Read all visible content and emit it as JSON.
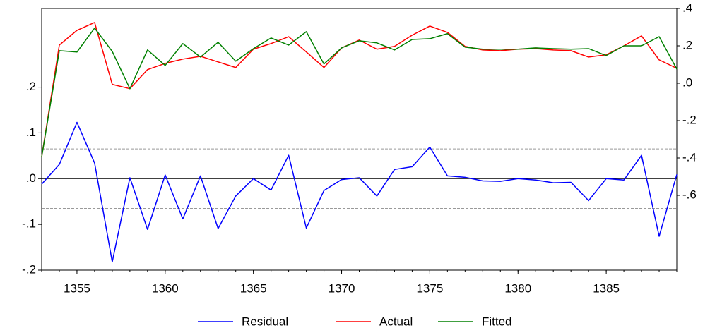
{
  "chart_data": {
    "type": "line",
    "x": [
      1353,
      1354,
      1355,
      1356,
      1357,
      1358,
      1359,
      1360,
      1361,
      1362,
      1363,
      1364,
      1365,
      1366,
      1367,
      1368,
      1369,
      1370,
      1371,
      1372,
      1373,
      1374,
      1375,
      1376,
      1377,
      1378,
      1379,
      1380,
      1381,
      1382,
      1383,
      1384,
      1385,
      1386,
      1387,
      1388,
      1389
    ],
    "xlim": [
      1353,
      1389
    ],
    "xticks": [
      1355,
      1360,
      1365,
      1370,
      1375,
      1380,
      1385
    ],
    "ylim": [
      -0.2,
      0.372
    ],
    "yticks": [
      {
        "value": 0.2,
        "label": ".2"
      },
      {
        "value": 0.1,
        "label": ".1"
      },
      {
        "value": 0,
        "label": ".0"
      },
      {
        "value": -0.1,
        "label": "-.1"
      },
      {
        "value": -0.2,
        "label": "-.2"
      }
    ],
    "y2lim": [
      -1.0,
      0.4
    ],
    "y2ticks": [
      {
        "value": 0.4,
        "label": ".4"
      },
      {
        "value": 0.2,
        "label": ".2"
      },
      {
        "value": 0,
        "label": ".0"
      },
      {
        "value": -0.2,
        "label": "-.2"
      },
      {
        "value": -0.4,
        "label": "-.4"
      },
      {
        "value": -0.6,
        "label": "-.6"
      }
    ],
    "reference_lines": [
      {
        "value": 0,
        "dashed": false
      },
      {
        "value": 0.065,
        "dashed": true
      },
      {
        "value": -0.065,
        "dashed": true
      }
    ],
    "legend": "bottom",
    "series": [
      {
        "name": "Residual",
        "color": "#0000ff",
        "values": [
          -0.012,
          0.031,
          0.123,
          0.034,
          -0.182,
          0.002,
          -0.111,
          0.008,
          -0.088,
          0.006,
          -0.109,
          -0.038,
          0.0,
          -0.025,
          0.051,
          -0.108,
          -0.026,
          -0.002,
          0.002,
          -0.038,
          0.02,
          0.026,
          0.069,
          0.006,
          0.003,
          -0.005,
          -0.006,
          0.0,
          -0.003,
          -0.009,
          -0.008,
          -0.048,
          0.0,
          -0.003,
          0.051,
          -0.126,
          0.009
        ]
      },
      {
        "name": "Actual",
        "color": "#ff0000",
        "axis": "y2",
        "values": [
          -0.394,
          0.204,
          0.283,
          0.325,
          -0.006,
          -0.029,
          0.073,
          0.106,
          0.129,
          0.144,
          0.114,
          0.084,
          0.182,
          0.212,
          0.249,
          0.167,
          0.084,
          0.189,
          0.231,
          0.182,
          0.197,
          0.257,
          0.306,
          0.272,
          0.197,
          0.178,
          0.174,
          0.182,
          0.185,
          0.178,
          0.174,
          0.14,
          0.152,
          0.2,
          0.253,
          0.125,
          0.08
        ]
      },
      {
        "name": "Fitted",
        "color": "#008000",
        "axis": "y2",
        "values": [
          -0.394,
          0.174,
          0.167,
          0.295,
          0.17,
          -0.029,
          0.178,
          0.095,
          0.212,
          0.14,
          0.219,
          0.118,
          0.185,
          0.242,
          0.204,
          0.276,
          0.103,
          0.189,
          0.227,
          0.216,
          0.178,
          0.234,
          0.238,
          0.265,
          0.193,
          0.182,
          0.182,
          0.182,
          0.189,
          0.185,
          0.182,
          0.185,
          0.148,
          0.2,
          0.2,
          0.249,
          0.076
        ]
      }
    ]
  }
}
